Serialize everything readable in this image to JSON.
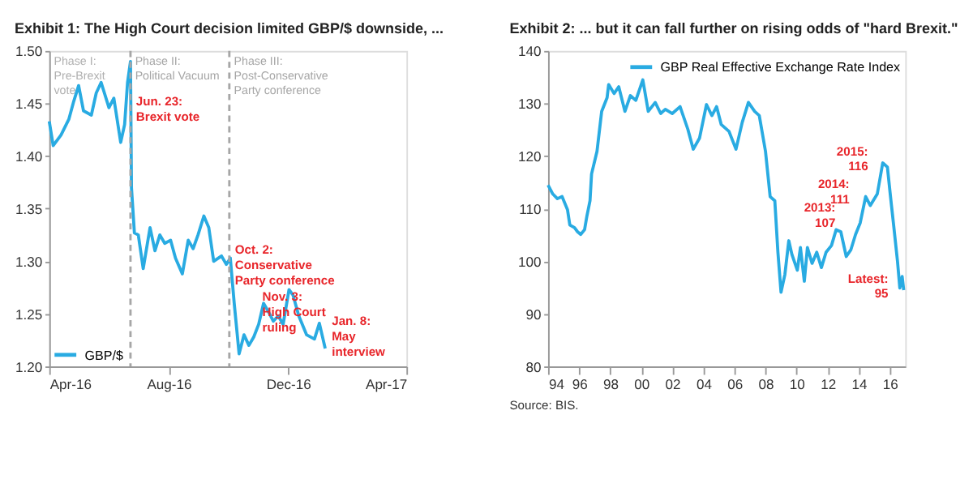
{
  "chart_data": [
    {
      "type": "line",
      "title": "Exhibit 1: The High Court decision limited GBP/$ downside, ...",
      "x": [
        "2016-04-01",
        "2016-04-05",
        "2016-04-13",
        "2016-04-21",
        "2016-04-26",
        "2016-05-01",
        "2016-05-06",
        "2016-05-14",
        "2016-05-19",
        "2016-05-24",
        "2016-06-01",
        "2016-06-06",
        "2016-06-13",
        "2016-06-17",
        "2016-06-20",
        "2016-06-23",
        "2016-06-24",
        "2016-06-27",
        "2016-07-01",
        "2016-07-06",
        "2016-07-13",
        "2016-07-18",
        "2016-07-23",
        "2016-07-28",
        "2016-08-03",
        "2016-08-08",
        "2016-08-15",
        "2016-08-21",
        "2016-08-26",
        "2016-08-31",
        "2016-09-06",
        "2016-09-11",
        "2016-09-16",
        "2016-09-24",
        "2016-09-29",
        "2016-10-03",
        "2016-10-07",
        "2016-10-12",
        "2016-10-17",
        "2016-10-22",
        "2016-10-27",
        "2016-11-01",
        "2016-11-06",
        "2016-11-11",
        "2016-11-16",
        "2016-11-21",
        "2016-11-26",
        "2016-12-02",
        "2016-12-06",
        "2016-12-12",
        "2016-12-20",
        "2016-12-28",
        "2017-01-02",
        "2017-01-08"
      ],
      "series": [
        {
          "name": "GBP/$",
          "color": "#29abe2",
          "values": [
            1.433,
            1.41,
            1.42,
            1.435,
            1.452,
            1.467,
            1.443,
            1.439,
            1.46,
            1.47,
            1.446,
            1.455,
            1.413,
            1.43,
            1.47,
            1.49,
            1.37,
            1.327,
            1.325,
            1.293,
            1.332,
            1.31,
            1.325,
            1.317,
            1.32,
            1.303,
            1.288,
            1.32,
            1.312,
            1.325,
            1.343,
            1.332,
            1.3,
            1.305,
            1.297,
            1.303,
            1.26,
            1.212,
            1.23,
            1.22,
            1.228,
            1.24,
            1.26,
            1.252,
            1.243,
            1.248,
            1.24,
            1.273,
            1.268,
            1.248,
            1.23,
            1.226,
            1.241,
            1.217
          ]
        }
      ],
      "xlim": [
        "2016-04-01",
        "2017-04-01"
      ],
      "xticks": [
        {
          "value": "2016-04-01",
          "label": "Apr-16"
        },
        {
          "value": "2016-08-01",
          "label": "Aug-16"
        },
        {
          "value": "2016-12-01",
          "label": "Dec-16"
        },
        {
          "value": "2017-04-01",
          "label": "Apr-17"
        }
      ],
      "ylim": [
        1.2,
        1.5
      ],
      "yticks": [
        {
          "value": 1.2,
          "label": "1.20"
        },
        1.25,
        {
          "value": 1.3,
          "label": "1.30"
        },
        1.35,
        {
          "value": 1.4,
          "label": "1.40"
        },
        1.45,
        {
          "value": 1.5,
          "label": "1.50"
        }
      ],
      "ref_lines": [
        {
          "axis": "x",
          "value": "2016-06-23",
          "label": "Phase II:\nPolitical Vacuum",
          "color": "#a6a6a6",
          "line_style": "dashed"
        },
        {
          "axis": "x",
          "value": "2016-10-02",
          "label": "Phase III:\nPost-Conservative\nParty conference",
          "color": "#a6a6a6",
          "line_style": "dashed"
        }
      ],
      "annotations": [
        "Phase I:\nPre-Brexit\nvote",
        {
          "text": "Jun. 23:\nBrexit vote",
          "x": "2016-06-24",
          "y": 1.441
        },
        {
          "text": "Oct. 2:\nConservative\nParty conference",
          "x": "2016-10-03",
          "y": 1.3
        },
        {
          "text": "Nov. 3:\nHigh Court\nruling",
          "x": "2016-10-31",
          "y": 1.255
        },
        {
          "text": "Jan. 8:\nMay\ninterview",
          "x": "2017-01-10",
          "y": 1.232
        }
      ],
      "legend": "bottom left",
      "grid": false,
      "marker": "none",
      "line_style": "solid"
    },
    {
      "type": "line",
      "title": "Exhibit 2: ... but it can fall further on rising odds of \"hard Brexit.\"",
      "x": [
        1994.0,
        1994.3,
        1994.6,
        1994.9,
        1995.25,
        1995.4,
        1995.7,
        1995.9,
        1996.1,
        1996.35,
        1996.5,
        1996.7,
        1996.8,
        1997.15,
        1997.45,
        1997.8,
        1997.9,
        1998.25,
        1998.55,
        1998.95,
        1999.3,
        1999.65,
        2000.1,
        2000.45,
        2000.9,
        2001.25,
        2001.55,
        2002.0,
        2002.5,
        2003.0,
        2003.35,
        2003.75,
        2004.2,
        2004.55,
        2004.85,
        2005.15,
        2005.65,
        2006.1,
        2006.5,
        2006.9,
        2007.3,
        2007.6,
        2008.0,
        2008.3,
        2008.6,
        2008.8,
        2009.0,
        2009.25,
        2009.5,
        2009.7,
        2010.05,
        2010.25,
        2010.5,
        2010.7,
        2011.0,
        2011.3,
        2011.6,
        2011.9,
        2012.25,
        2012.55,
        2012.85,
        2013.2,
        2013.5,
        2013.8,
        2014.1,
        2014.45,
        2014.75,
        2015.2,
        2015.55,
        2015.85,
        2016.05,
        2016.25,
        2016.5,
        2016.65,
        2016.8,
        2016.9
      ],
      "series": [
        {
          "name": "GBP Real Effective Exchange Rate Index",
          "color": "#29abe2",
          "values": [
            114.5,
            112.8,
            111.9,
            112.3,
            109.8,
            106.9,
            106.4,
            105.6,
            105.1,
            106,
            108.6,
            111.5,
            116.6,
            120.9,
            128.5,
            131.1,
            133.6,
            131.9,
            133.2,
            128.5,
            131.5,
            130.6,
            134.5,
            128.5,
            130.2,
            128.1,
            128.9,
            128.1,
            129.4,
            125.1,
            121.3,
            123.4,
            129.8,
            127.7,
            129.4,
            126,
            124.7,
            121.3,
            126.4,
            130.2,
            128.5,
            127.7,
            120.9,
            112.3,
            111.5,
            101.7,
            94.1,
            97.5,
            103.9,
            101.3,
            98.3,
            102.6,
            96.2,
            102.6,
            99.6,
            101.7,
            98.8,
            101.7,
            103,
            106,
            105.6,
            100.9,
            102.2,
            105.1,
            107.3,
            112.3,
            110.6,
            112.8,
            118.7,
            117.9,
            112.3,
            106.9,
            100,
            94.9,
            97.1,
            94.5
          ]
        }
      ],
      "xlim": [
        1994,
        2017
      ],
      "xticks": [
        {
          "value": 1994,
          "label": "94"
        },
        {
          "value": 1996,
          "label": "96"
        },
        {
          "value": 1998,
          "label": "98"
        },
        {
          "value": 2000,
          "label": "00"
        },
        {
          "value": 2002,
          "label": "02"
        },
        {
          "value": 2004,
          "label": "04"
        },
        {
          "value": 2006,
          "label": "06"
        },
        {
          "value": 2008,
          "label": "08"
        },
        {
          "value": 2010,
          "label": "10"
        },
        {
          "value": 2012,
          "label": "12"
        },
        {
          "value": 2014,
          "label": "14"
        },
        {
          "value": 2016,
          "label": "16"
        }
      ],
      "ylim": [
        80,
        140
      ],
      "yticks": [
        80,
        90,
        100,
        110,
        120,
        130,
        140
      ],
      "annotations": [
        {
          "text": "2015:\n116",
          "x": 2015.6,
          "y": 118.7
        },
        {
          "text": "2014:\n111",
          "x": 2014.4,
          "y": 112.5
        },
        {
          "text": "2013:\n107",
          "x": 2013.5,
          "y": 108
        },
        {
          "text": "Latest:\n95",
          "x": 2016.9,
          "y": 94.5
        },
        "Source: BIS."
      ],
      "legend": "top right",
      "grid": false,
      "marker": "none",
      "line_style": "solid"
    }
  ]
}
